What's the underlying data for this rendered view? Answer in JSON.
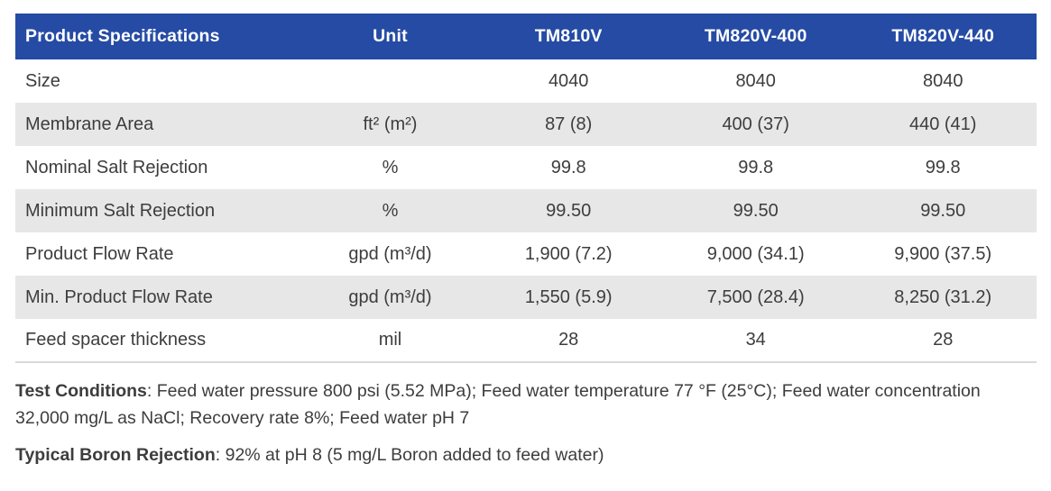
{
  "colors": {
    "header-bg": "#254BA4",
    "header-text": "#FFFFFF",
    "stripe-bg": "#E7E7E7",
    "body-text": "#3D3D3D",
    "table-border": "#D9D9D9",
    "page-bg": "#FFFFFF"
  },
  "table": {
    "columns": [
      "Product Specifications",
      "Unit",
      "TM810V",
      "TM820V-400",
      "TM820V-440"
    ],
    "rows": [
      {
        "label": "Size",
        "unit": "",
        "values": [
          "4040",
          "8040",
          "8040"
        ]
      },
      {
        "label": "Membrane Area",
        "unit": "ft² (m²)",
        "values": [
          "87 (8)",
          "400 (37)",
          "440 (41)"
        ]
      },
      {
        "label": "Nominal Salt Rejection",
        "unit": "%",
        "values": [
          "99.8",
          "99.8",
          "99.8"
        ]
      },
      {
        "label": "Minimum Salt Rejection",
        "unit": "%",
        "values": [
          "99.50",
          "99.50",
          "99.50"
        ]
      },
      {
        "label": "Product Flow Rate",
        "unit": "gpd (m³/d)",
        "values": [
          "1,900 (7.2)",
          "9,000 (34.1)",
          "9,900 (37.5)"
        ]
      },
      {
        "label": "Min. Product Flow Rate",
        "unit": "gpd (m³/d)",
        "values": [
          "1,550 (5.9)",
          "7,500 (28.4)",
          "8,250 (31.2)"
        ]
      },
      {
        "label": "Feed spacer thickness",
        "unit": "mil",
        "values": [
          "28",
          "34",
          "28"
        ]
      }
    ]
  },
  "notes": [
    {
      "label": "Test Conditions",
      "text": ": Feed water pressure 800 psi (5.52 MPa); Feed water temperature 77 °F (25°C); Feed water concentration 32,000 mg/L as NaCl; Recovery rate 8%; Feed water pH 7"
    },
    {
      "label": "Typical Boron Rejection",
      "text": ": 92% at pH 8 (5 mg/L Boron added to feed water)"
    }
  ]
}
